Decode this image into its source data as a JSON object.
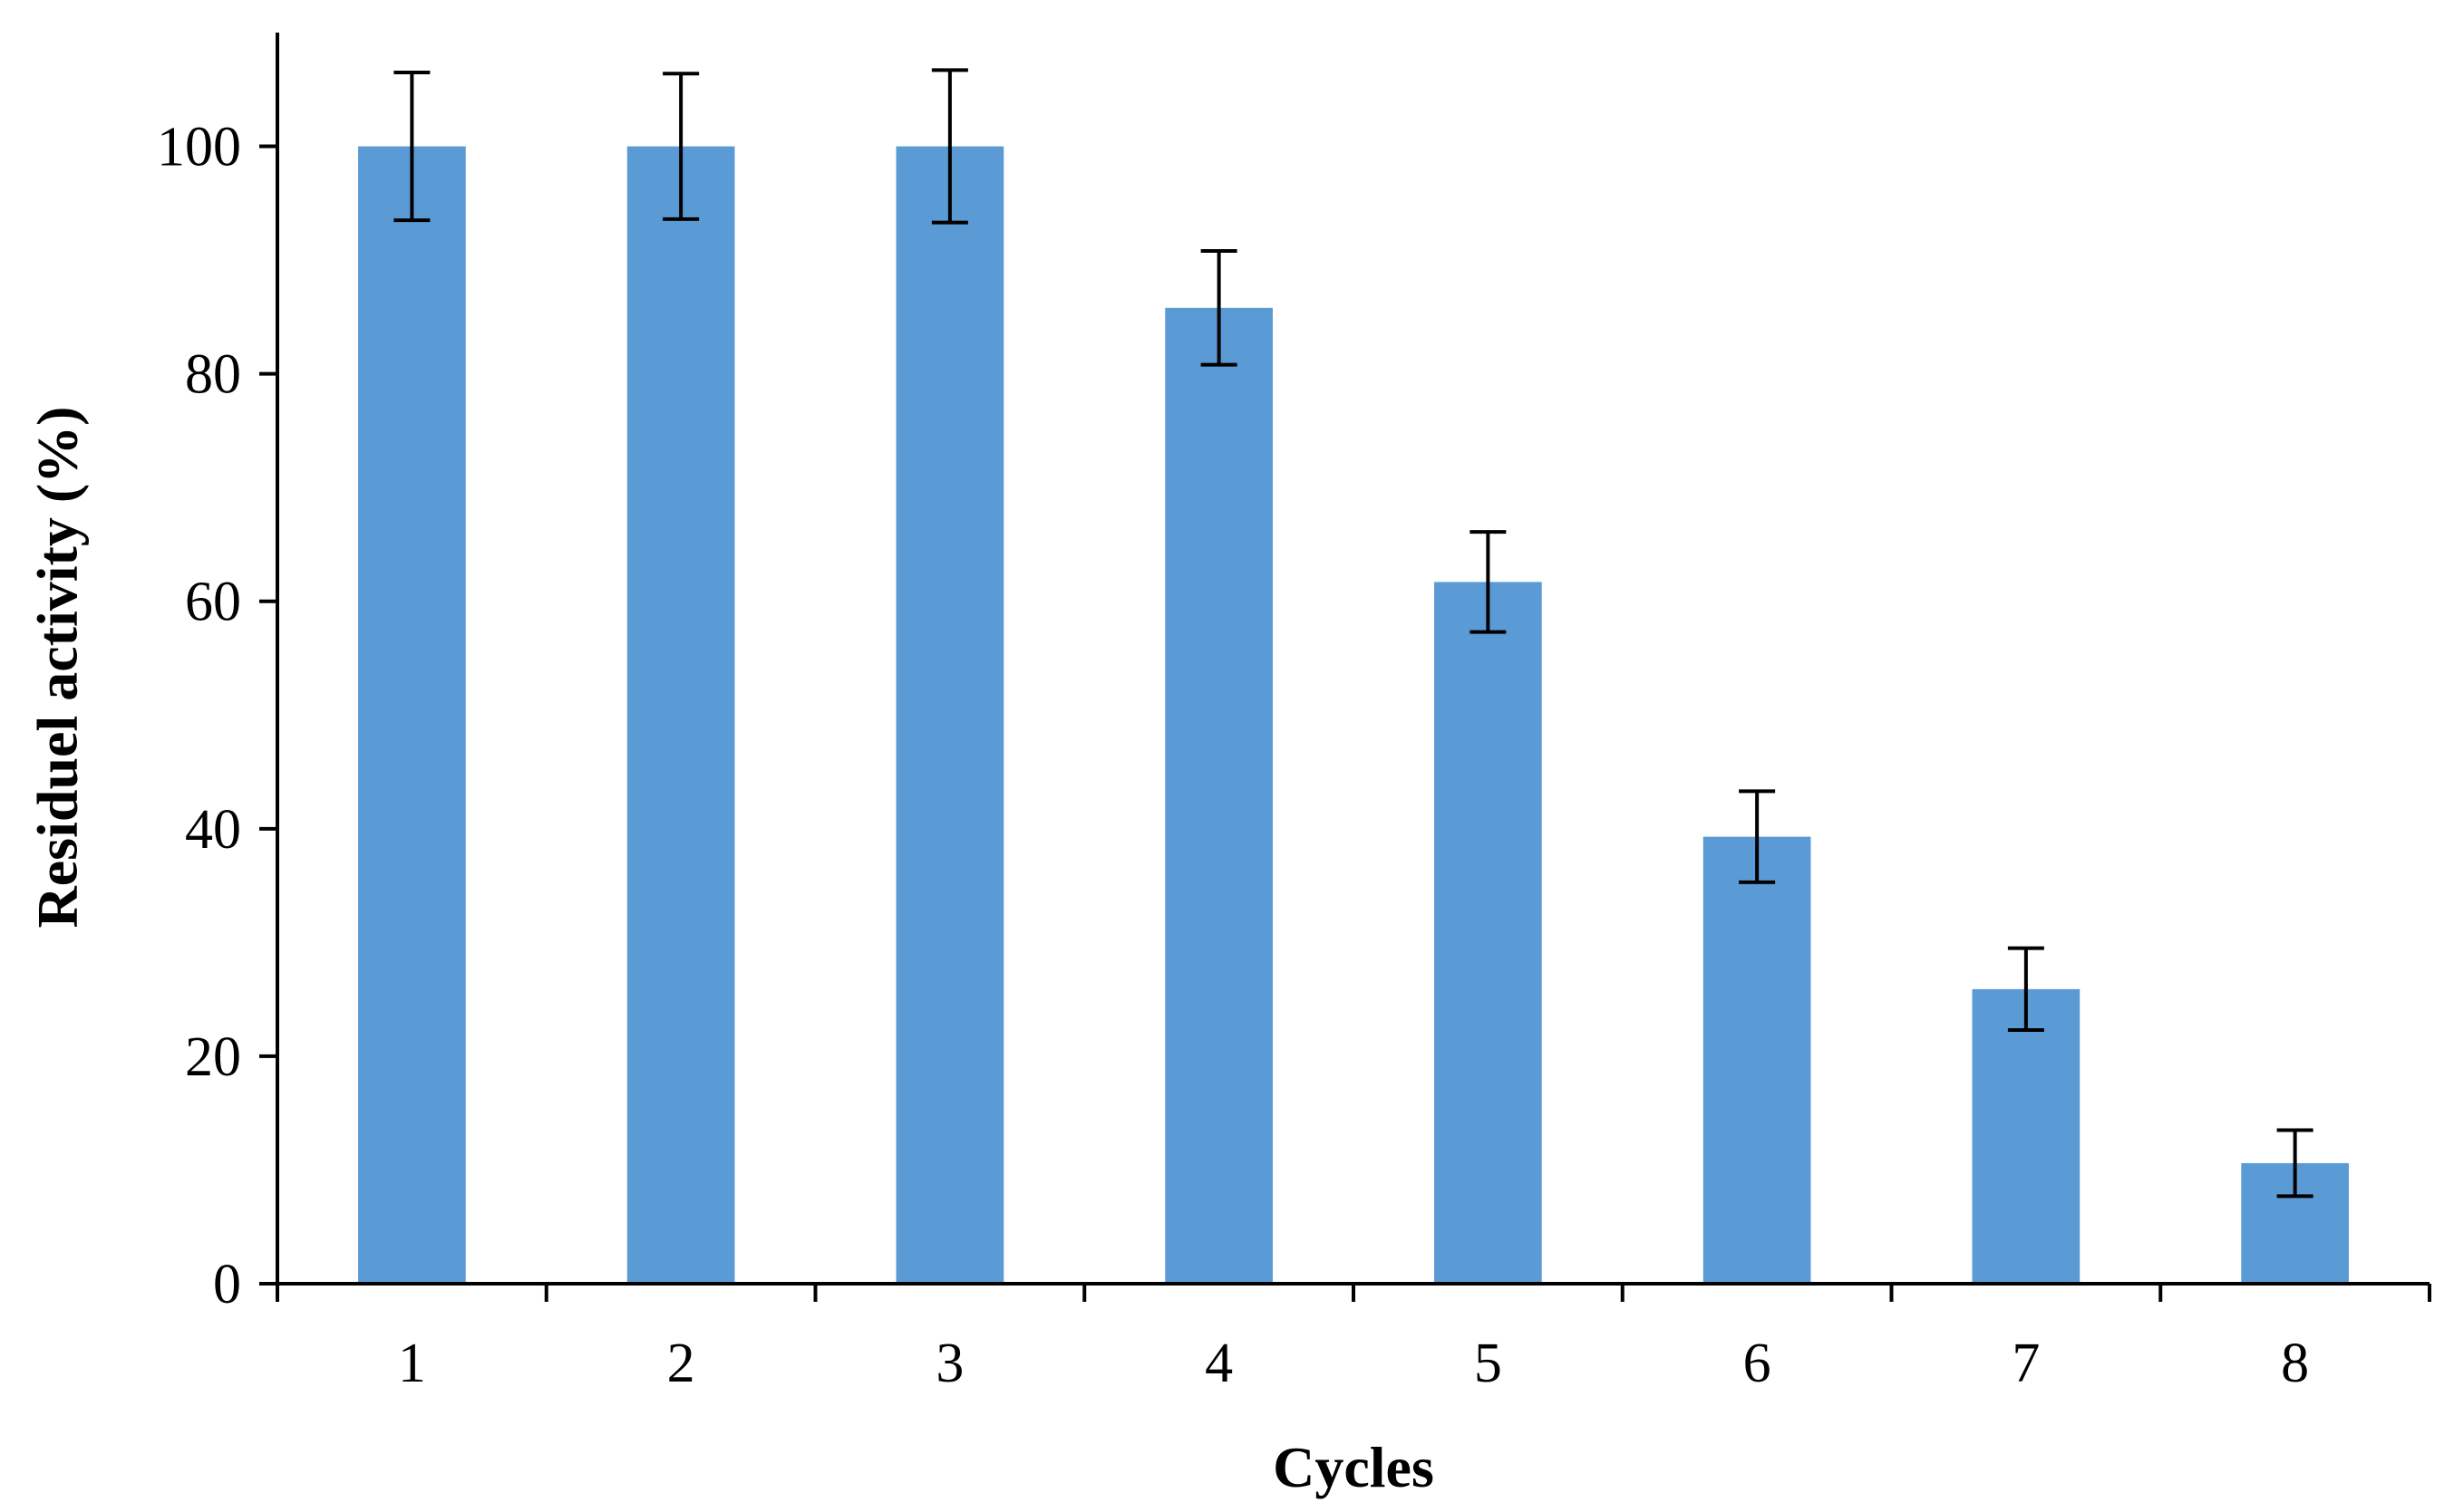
{
  "chart_data": {
    "type": "bar",
    "title": "",
    "xlabel": "Cycles",
    "ylabel": "Residuel activity (%)",
    "categories": [
      "1",
      "2",
      "3",
      "4",
      "5",
      "6",
      "7",
      "8"
    ],
    "values": [
      100,
      100,
      100,
      85.8,
      61.7,
      39.3,
      25.9,
      10.6
    ],
    "error": [
      6.5,
      6.4,
      6.7,
      5.0,
      4.4,
      4.0,
      3.6,
      2.9
    ],
    "ylim": [
      0,
      110
    ],
    "yticks": [
      "0",
      "20",
      "40",
      "60",
      "80",
      "100"
    ],
    "ytick_values": [
      0,
      20,
      40,
      60,
      80,
      100
    ],
    "grid": false,
    "legend": "none",
    "bar_color": "#5b9bd5",
    "error_color": "#000000"
  }
}
